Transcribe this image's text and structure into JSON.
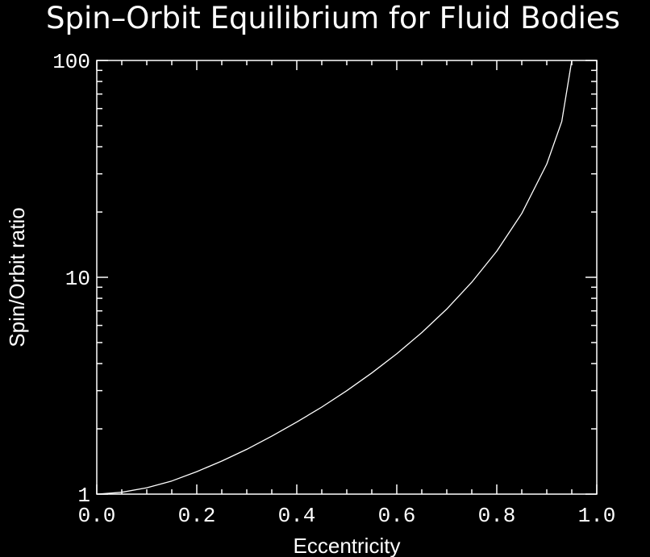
{
  "chart_data": {
    "type": "line",
    "title": "Spin–Orbit Equilibrium for Fluid Bodies",
    "xlabel": "Eccentricity",
    "ylabel": "Spin/Orbit ratio",
    "xlim": [
      0.0,
      1.0
    ],
    "ylim": [
      1,
      100
    ],
    "y_scale": "log",
    "grid": false,
    "background_color": "#000000",
    "foreground_color": "#ffffff",
    "x_tick_labels": [
      "0.0",
      "0.2",
      "0.4",
      "0.6",
      "0.8",
      "1.0"
    ],
    "y_tick_labels": [
      "1",
      "10",
      "100"
    ],
    "series": [
      {
        "color": "#ffffff",
        "x": [
          0.0,
          0.05,
          0.1,
          0.15,
          0.2,
          0.25,
          0.3,
          0.35,
          0.4,
          0.45,
          0.5,
          0.55,
          0.6,
          0.65,
          0.7,
          0.75,
          0.8,
          0.85,
          0.9,
          0.93,
          0.95
        ],
        "y": [
          1.0,
          1.02,
          1.07,
          1.15,
          1.27,
          1.42,
          1.61,
          1.85,
          2.15,
          2.52,
          3.0,
          3.62,
          4.44,
          5.56,
          7.14,
          9.49,
          13.2,
          19.7,
          33.3,
          52.3,
          100.0
        ]
      }
    ]
  }
}
